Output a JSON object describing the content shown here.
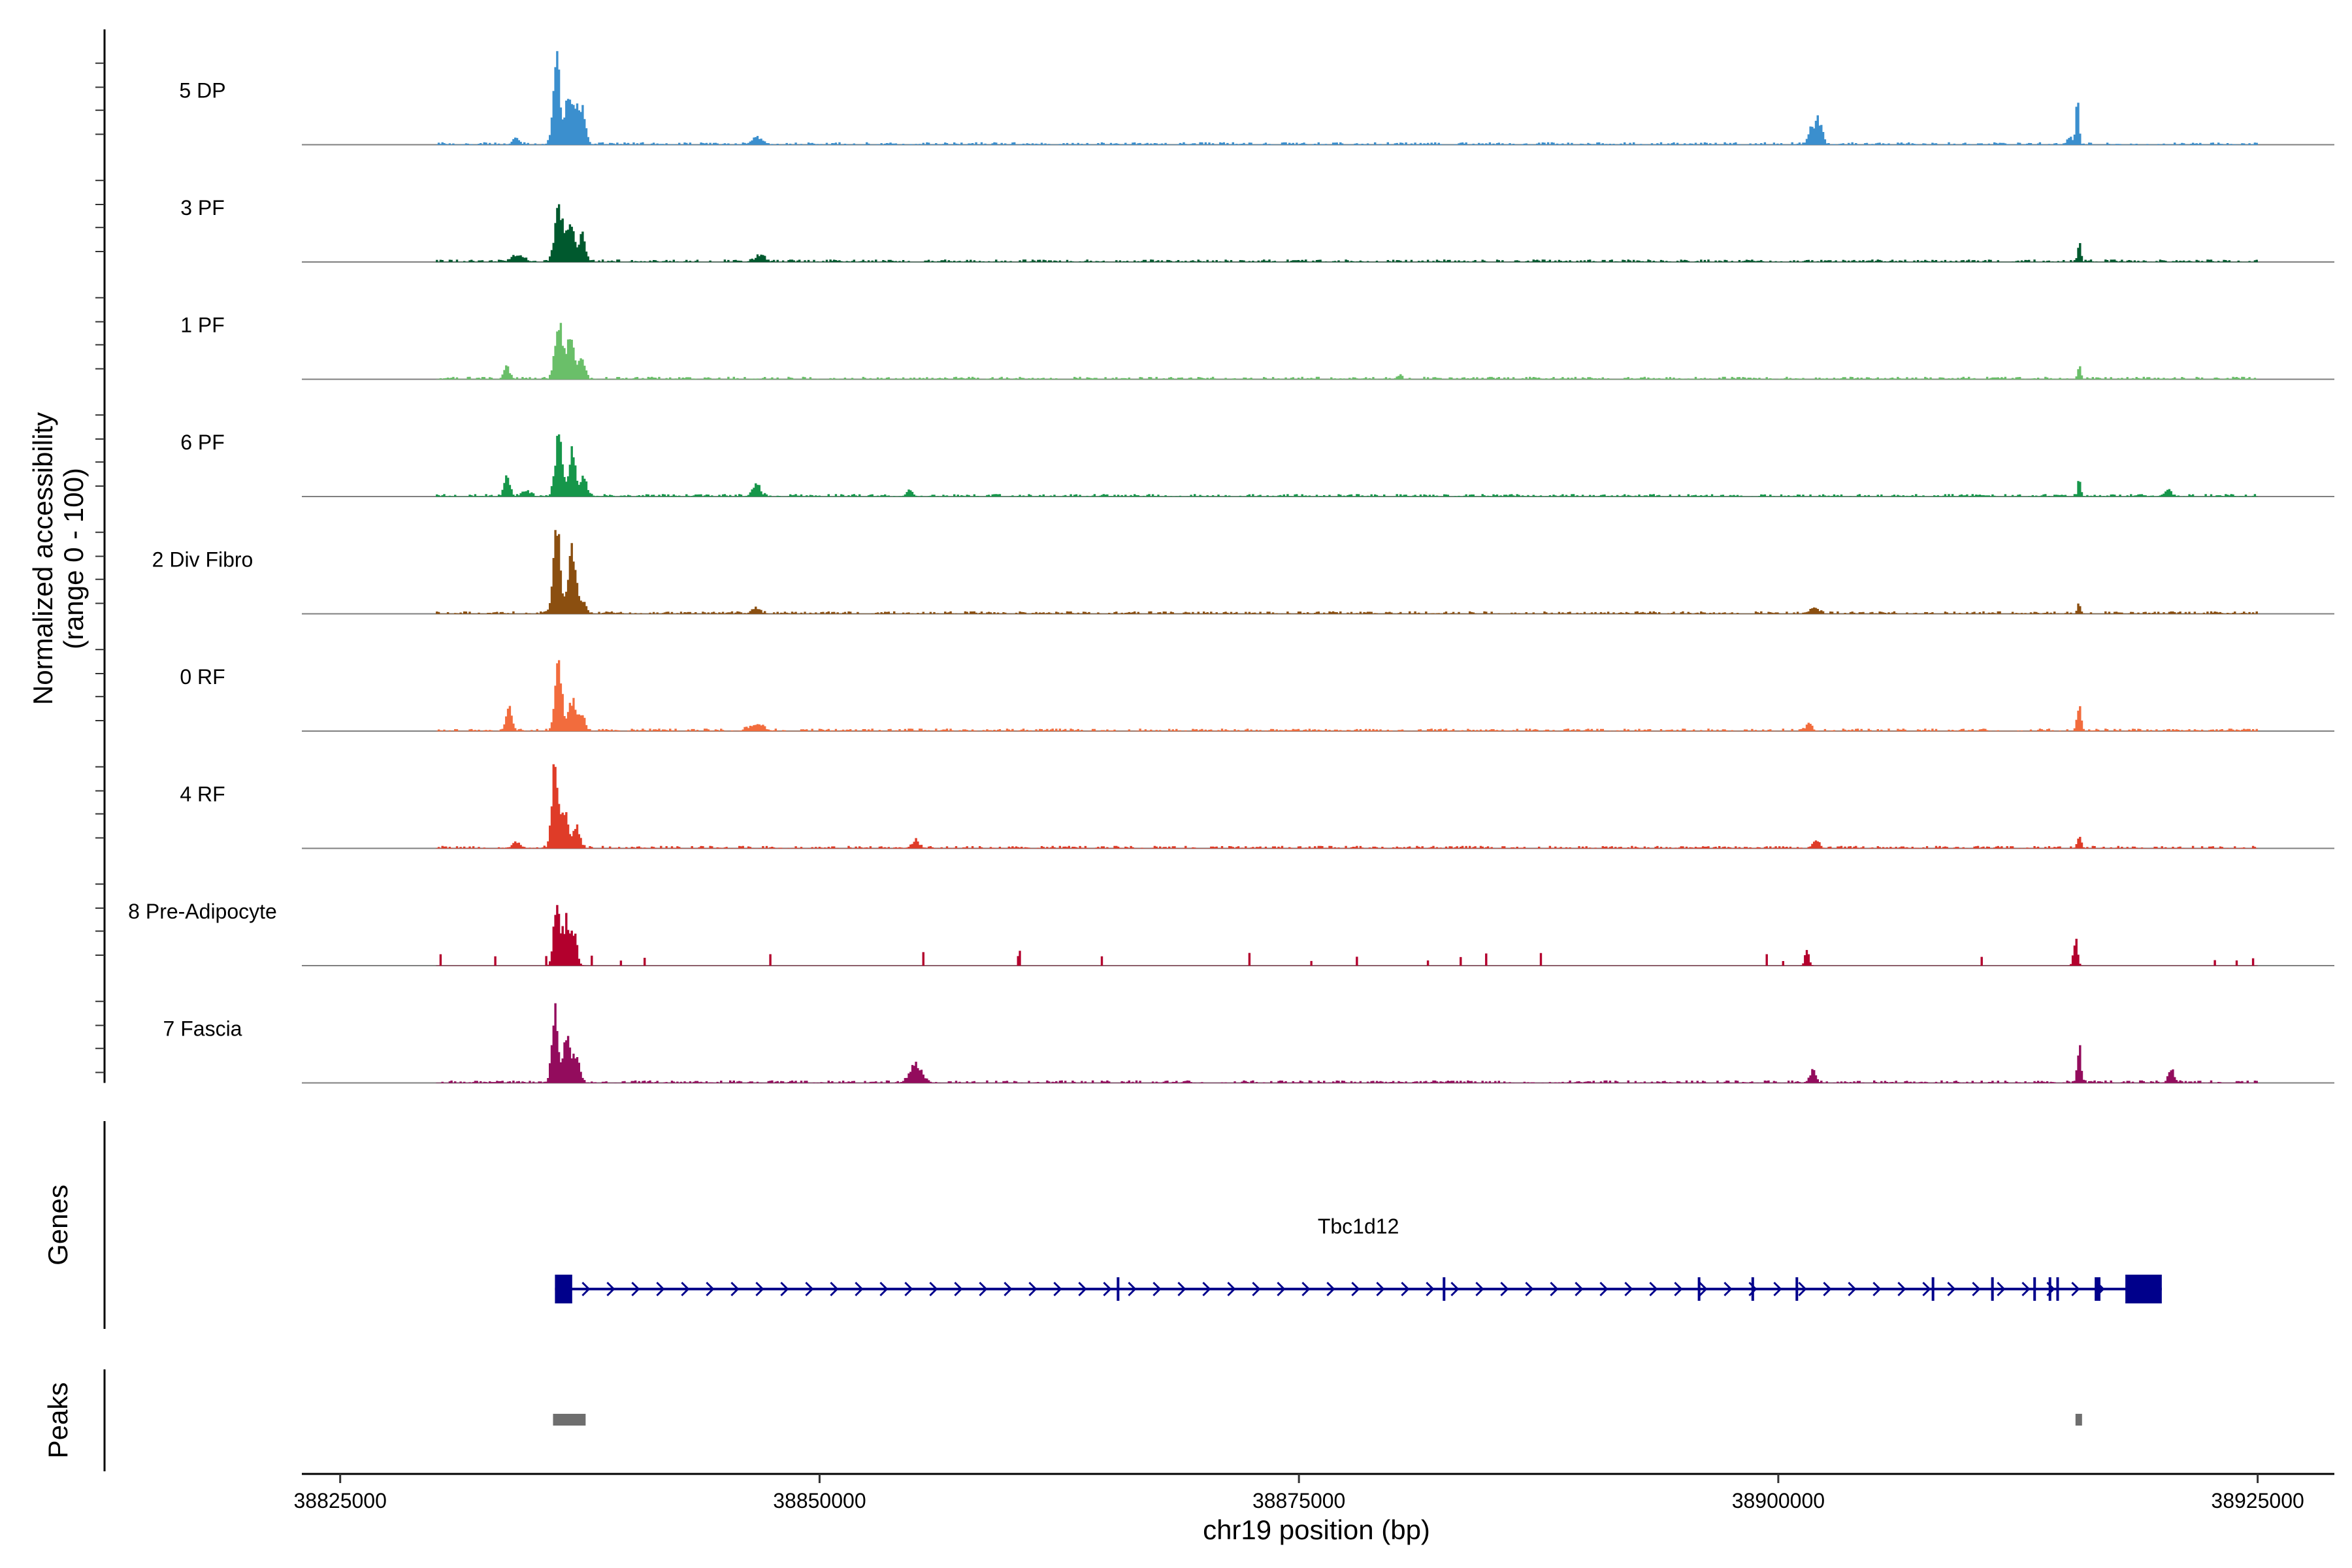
{
  "chart_data": {
    "type": "area",
    "title": "",
    "ylabel_line1": "Normalized accessibility",
    "ylabel_line2": "(range 0 - 100)",
    "xlabel": "chr19 position (bp)",
    "xlim": [
      38823000,
      38929000
    ],
    "data_xlim": [
      38830000,
      38925000
    ],
    "ylim": [
      0,
      100
    ],
    "x_ticks": [
      38825000,
      38850000,
      38875000,
      38900000,
      38925000
    ],
    "x_tick_labels": [
      "38825000",
      "38850000",
      "38875000",
      "38900000",
      "38925000"
    ],
    "tracks": [
      {
        "name": "5 DP",
        "color": "#3b8fce",
        "peaks": [
          [
            38834200,
            8,
            150
          ],
          [
            38836300,
            95,
            180
          ],
          [
            38836900,
            55,
            160
          ],
          [
            38837300,
            40,
            180
          ],
          [
            38837700,
            35,
            150
          ],
          [
            38846700,
            9,
            220
          ],
          [
            38902100,
            28,
            180
          ],
          [
            38901700,
            15,
            160
          ],
          [
            38915600,
            55,
            80
          ],
          [
            38915200,
            10,
            120
          ]
        ]
      },
      {
        "name": "3 PF",
        "color": "#00592e",
        "peaks": [
          [
            38834300,
            8,
            300
          ],
          [
            38836400,
            65,
            200
          ],
          [
            38837000,
            50,
            180
          ],
          [
            38837600,
            30,
            180
          ],
          [
            38846900,
            7,
            250
          ],
          [
            38915700,
            25,
            80
          ]
        ]
      },
      {
        "name": "1 PF",
        "color": "#6abf69",
        "peaks": [
          [
            38833700,
            14,
            150
          ],
          [
            38836400,
            70,
            180
          ],
          [
            38837000,
            55,
            180
          ],
          [
            38837600,
            22,
            160
          ],
          [
            38880300,
            7,
            80
          ],
          [
            38915700,
            14,
            80
          ]
        ]
      },
      {
        "name": "6 PF",
        "color": "#16964a",
        "peaks": [
          [
            38833700,
            20,
            150
          ],
          [
            38834700,
            7,
            200
          ],
          [
            38836400,
            70,
            180
          ],
          [
            38837100,
            50,
            180
          ],
          [
            38837700,
            20,
            160
          ],
          [
            38846700,
            14,
            200
          ],
          [
            38854700,
            9,
            150
          ],
          [
            38915700,
            18,
            80
          ],
          [
            38920300,
            6,
            200
          ]
        ]
      },
      {
        "name": "2 Div Fibro",
        "color": "#8b4f10",
        "peaks": [
          [
            38836300,
            100,
            180
          ],
          [
            38837100,
            70,
            200
          ],
          [
            38837700,
            12,
            160
          ],
          [
            38846700,
            6,
            200
          ],
          [
            38901900,
            7,
            200
          ],
          [
            38915700,
            12,
            80
          ]
        ]
      },
      {
        "name": "0 RF",
        "color": "#f26c3d",
        "peaks": [
          [
            38833800,
            25,
            160
          ],
          [
            38836400,
            70,
            180
          ],
          [
            38837100,
            35,
            180
          ],
          [
            38837600,
            18,
            160
          ],
          [
            38846700,
            7,
            350
          ],
          [
            38901600,
            8,
            150
          ],
          [
            38915700,
            28,
            100
          ]
        ]
      },
      {
        "name": "4 RF",
        "color": "#df3c28",
        "peaks": [
          [
            38834200,
            7,
            200
          ],
          [
            38836200,
            90,
            160
          ],
          [
            38836700,
            45,
            180
          ],
          [
            38837300,
            25,
            180
          ],
          [
            38855000,
            8,
            200
          ],
          [
            38902000,
            10,
            150
          ],
          [
            38915700,
            12,
            100
          ]
        ]
      },
      {
        "name": "8 Pre-Adipocyte",
        "color": "#b3002d",
        "peaks": [
          [
            38836300,
            80,
            150
          ],
          [
            38836800,
            50,
            160
          ],
          [
            38837200,
            35,
            150
          ],
          [
            38915500,
            30,
            100
          ],
          [
            38901500,
            18,
            100
          ]
        ]
      },
      {
        "name": "7 Fascia",
        "color": "#930c5d",
        "peaks": [
          [
            38836200,
            90,
            150
          ],
          [
            38836800,
            50,
            180
          ],
          [
            38837300,
            30,
            180
          ],
          [
            38855000,
            20,
            300
          ],
          [
            38901800,
            14,
            150
          ],
          [
            38915700,
            40,
            100
          ],
          [
            38920500,
            15,
            150
          ]
        ]
      }
    ],
    "genes_panel_title": "Genes",
    "gene": {
      "name": "Tbc1d12",
      "strand": "+",
      "start": 38836200,
      "end": 38920000,
      "exons": [
        [
          38836200,
          38837100
        ],
        [
          38865500,
          38865600
        ],
        [
          38882500,
          38882600
        ],
        [
          38895800,
          38895900
        ],
        [
          38898600,
          38898700
        ],
        [
          38900900,
          38901000
        ],
        [
          38908000,
          38908100
        ],
        [
          38911100,
          38911200
        ],
        [
          38913300,
          38913400
        ],
        [
          38914100,
          38914200
        ],
        [
          38914500,
          38914600
        ],
        [
          38916500,
          38916800
        ],
        [
          38918100,
          38920000
        ]
      ],
      "color": "#00008b"
    },
    "peaks_panel_title": "Peaks",
    "peak_regions": [
      [
        38836100,
        38837800
      ],
      [
        38915500,
        38915800
      ]
    ],
    "peak_color": "#6e6e6e"
  }
}
